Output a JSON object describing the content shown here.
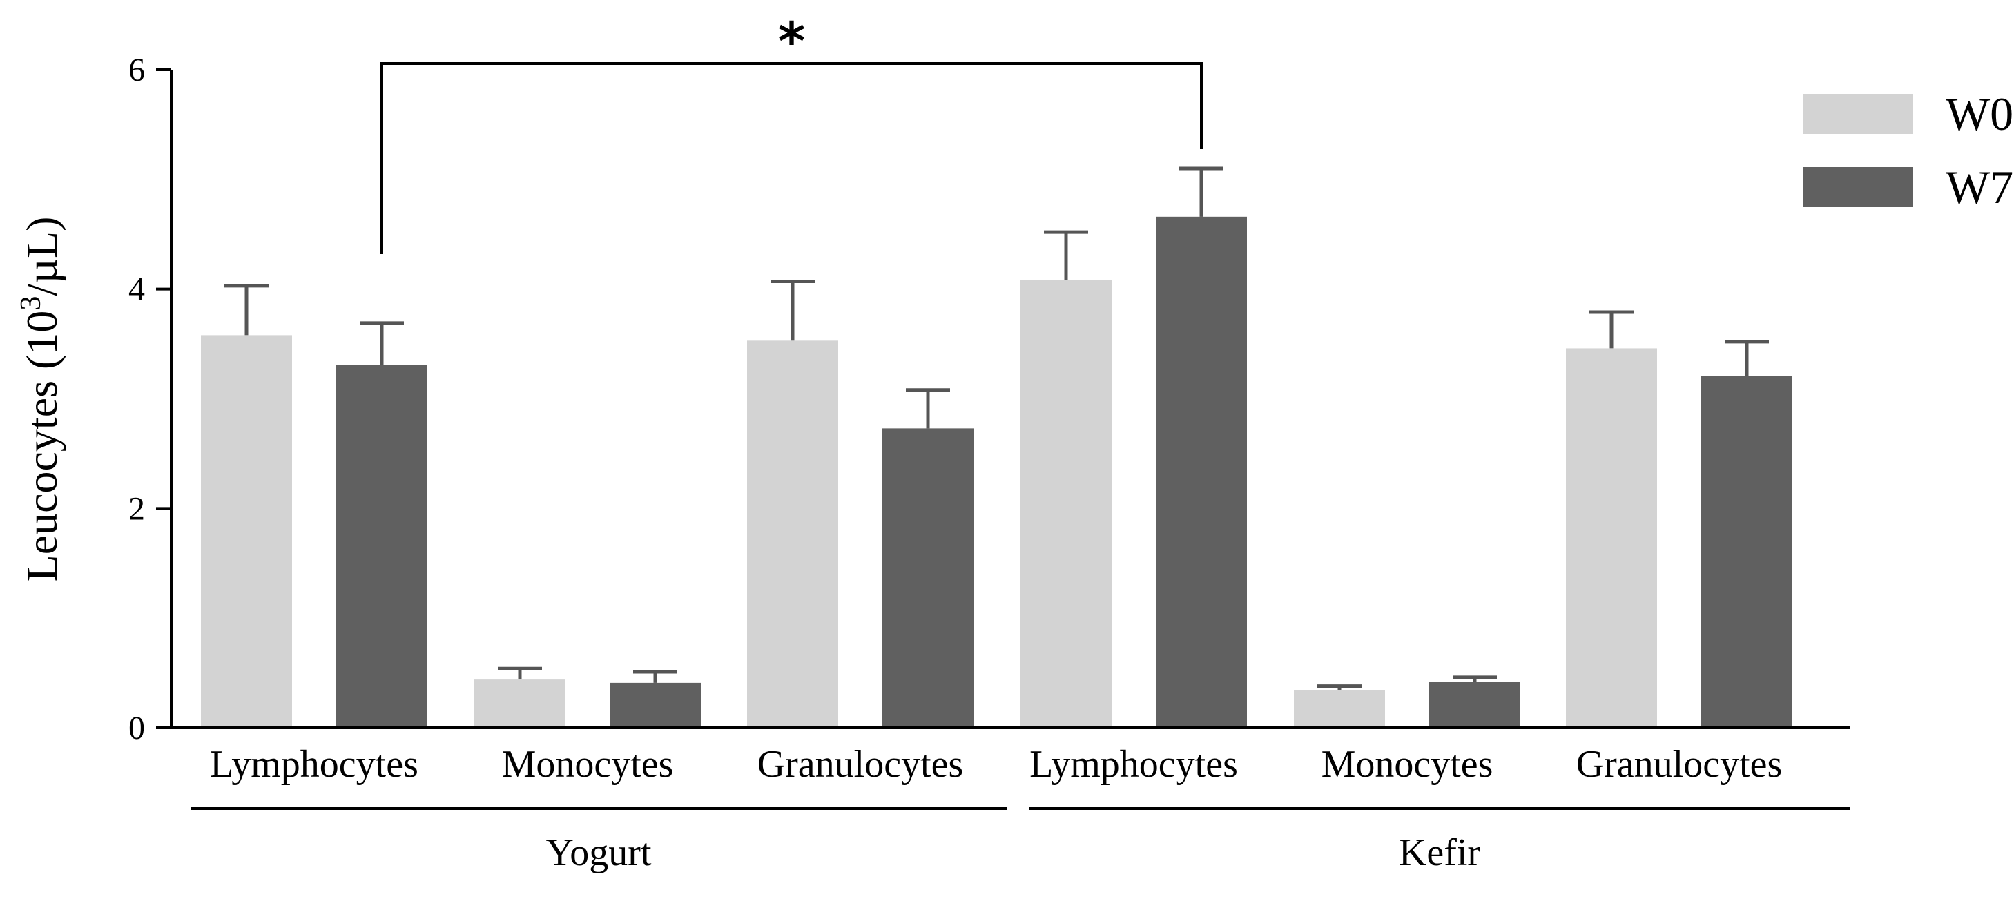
{
  "chart_data": {
    "type": "bar",
    "title": "",
    "ylabel_main": "Leucocytes (10",
    "ylabel_sup": "3",
    "ylabel_tail": "/µL)",
    "yticks": [
      "0",
      "2",
      "4",
      "6"
    ],
    "ylim": [
      0,
      6
    ],
    "categories": [
      "Lymphocytes",
      "Monocytes",
      "Granulocytes",
      "Lymphocytes",
      "Monocytes",
      "Granulocytes"
    ],
    "groups": [
      {
        "name": "Yogurt",
        "category_indices": [
          0,
          1,
          2
        ]
      },
      {
        "name": "Kefir",
        "category_indices": [
          3,
          4,
          5
        ]
      }
    ],
    "series": [
      {
        "name": "W0",
        "color": "#d3d3d3",
        "values": [
          3.58,
          0.44,
          3.53,
          4.08,
          0.34,
          3.46
        ],
        "errors": [
          0.45,
          0.1,
          0.54,
          0.44,
          0.04,
          0.33
        ]
      },
      {
        "name": "W7",
        "color": "#606060",
        "values": [
          3.31,
          0.41,
          2.73,
          4.66,
          0.42,
          3.21
        ],
        "errors": [
          0.38,
          0.1,
          0.35,
          0.44,
          0.04,
          0.31
        ]
      }
    ],
    "significance": {
      "label": "*",
      "from": {
        "series": 1,
        "category": 0
      },
      "to": {
        "series": 1,
        "category": 3
      }
    },
    "legend_position": "top-right"
  }
}
